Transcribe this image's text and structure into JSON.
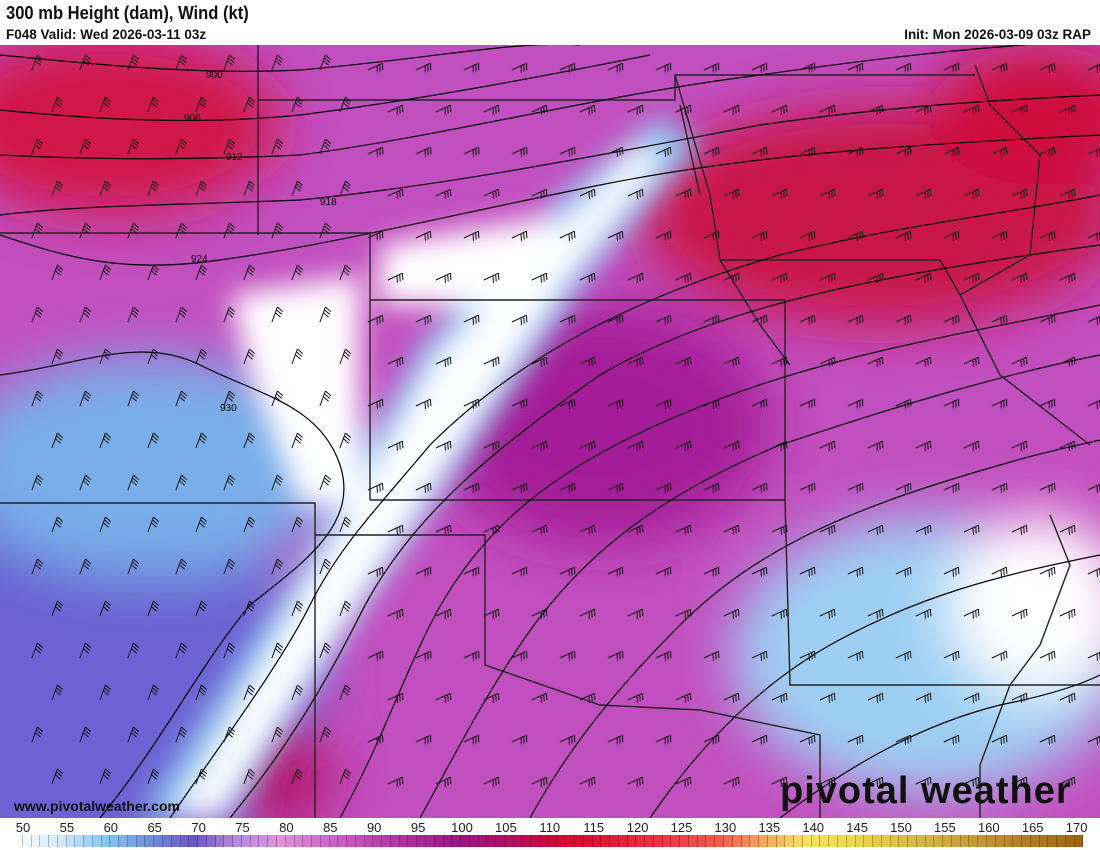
{
  "header": {
    "title": "300 mb Height (dam), Wind (kt)",
    "valid": "F048 Valid: Wed 2026-03-11 03z",
    "init": "Init: Mon 2026-03-09 03z RAP"
  },
  "map": {
    "contour_labels": [
      "900",
      "906",
      "912",
      "918",
      "924",
      "930"
    ],
    "fill_colors": {
      "jet_core": "#d1103a",
      "high_wind": "#b01d9c",
      "moderate": "#d772d2",
      "low": "#7b6fd8",
      "calm": "#ffffff"
    }
  },
  "watermark": {
    "url": "www.pivotalweather.com",
    "logo": "pivotal weather"
  },
  "colorbar": {
    "labels": [
      "50",
      "55",
      "60",
      "65",
      "70",
      "75",
      "80",
      "85",
      "90",
      "95",
      "100",
      "105",
      "110",
      "115",
      "120",
      "125",
      "130",
      "135",
      "140",
      "145",
      "150",
      "155",
      "160",
      "165",
      "170"
    ],
    "min": 50,
    "max": 172,
    "stops": [
      [
        50,
        "#ffffff"
      ],
      [
        55,
        "#cfe9fb"
      ],
      [
        60,
        "#86c6f3"
      ],
      [
        65,
        "#6f8fe0"
      ],
      [
        70,
        "#6c55c8"
      ],
      [
        75,
        "#b58ae0"
      ],
      [
        80,
        "#e291dc"
      ],
      [
        85,
        "#d268cc"
      ],
      [
        90,
        "#c245b5"
      ],
      [
        95,
        "#b0289f"
      ],
      [
        100,
        "#a0138a"
      ],
      [
        105,
        "#b00e6a"
      ],
      [
        110,
        "#c90a3e"
      ],
      [
        115,
        "#d8102f"
      ],
      [
        120,
        "#e2283b"
      ],
      [
        125,
        "#ec3d45"
      ],
      [
        130,
        "#f45a4c"
      ],
      [
        135,
        "#f7a65a"
      ],
      [
        140,
        "#f6e45c"
      ],
      [
        145,
        "#ecd94c"
      ],
      [
        150,
        "#e0c545"
      ],
      [
        155,
        "#d1ae3c"
      ],
      [
        160,
        "#c49631"
      ],
      [
        165,
        "#b57e22"
      ],
      [
        172,
        "#a05e10"
      ]
    ]
  }
}
